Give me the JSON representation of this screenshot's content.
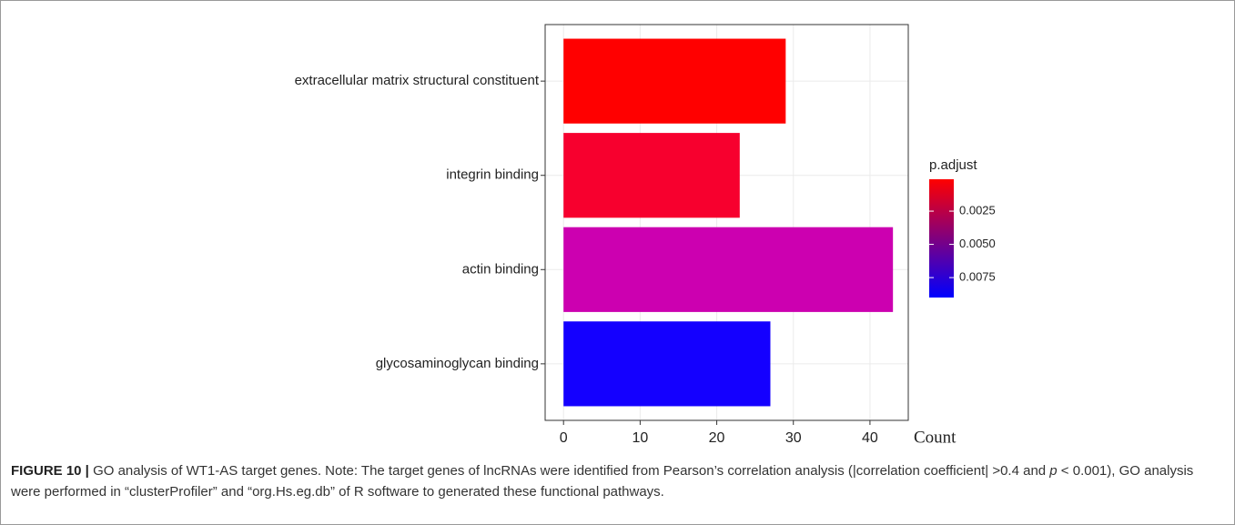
{
  "chart_data": {
    "type": "bar",
    "orientation": "horizontal",
    "categories": [
      "extracellular matrix structural constituent",
      "integrin binding",
      "actin binding",
      "glycosaminoglycan binding"
    ],
    "values": [
      29,
      23,
      43,
      27
    ],
    "colors": [
      "#ff0000",
      "#f7002e",
      "#cc00b0",
      "#1400ff"
    ],
    "xlabel": "Count",
    "xlim": [
      -2.4,
      45
    ],
    "xticks": [
      0,
      10,
      20,
      30,
      40
    ],
    "grid": true,
    "colorbar": {
      "title": "p.adjust",
      "lim": [
        0.0001,
        0.009
      ],
      "ticks": [
        0.0025,
        {
          "value": 0.005,
          "label": "0.0050"
        },
        0.0075
      ],
      "colors": [
        "#ff0000",
        "#0000ff"
      ]
    }
  },
  "caption": {
    "label": "FIGURE 10 |",
    "text": [
      "GO analysis of WT1-AS target genes. Note: The target genes of lncRNAs were identified from Pearson’s correlation analysis (|correlation coefficient| >0.4 and ",
      "p",
      " < 0.001), GO analysis were performed in “clusterProfiler” and “org.Hs.eg.db” of R software to generated these functional pathways."
    ]
  }
}
